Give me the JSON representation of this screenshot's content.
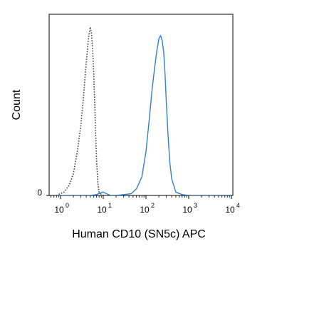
{
  "chart_data": {
    "type": "line",
    "xlabel": "Human CD10 (SN5c) APC",
    "ylabel": "Count",
    "x_scale": "log",
    "xlim": [
      1,
      10000
    ],
    "ylim": [
      0,
      1
    ],
    "x_ticks": [
      {
        "base": "10",
        "exp": "0",
        "value": 1
      },
      {
        "base": "10",
        "exp": "1",
        "value": 10
      },
      {
        "base": "10",
        "exp": "2",
        "value": 100
      },
      {
        "base": "10",
        "exp": "3",
        "value": 1000
      },
      {
        "base": "10",
        "exp": "4",
        "value": 10000
      }
    ],
    "y_ticks": [
      {
        "label": "0",
        "value": 0
      }
    ],
    "grid": false,
    "legend": "none",
    "series": [
      {
        "style": "dotted",
        "color": "#444444",
        "x": [
          0.8,
          1.2,
          1.6,
          2.0,
          2.5,
          3.0,
          3.4,
          3.8,
          4.2,
          4.5,
          4.8,
          5.0,
          5.3,
          5.6,
          6.0,
          6.3,
          6.6,
          7.0,
          7.5,
          8.0,
          9.0,
          10,
          12,
          15
        ],
        "y": [
          0.0,
          0.02,
          0.06,
          0.13,
          0.27,
          0.42,
          0.57,
          0.72,
          0.85,
          0.93,
          0.98,
          1.0,
          0.96,
          0.88,
          0.72,
          0.55,
          0.38,
          0.2,
          0.07,
          0.02,
          0.005,
          0.0,
          0.0,
          0.0
        ]
      },
      {
        "style": "solid",
        "color": "#2f7fd6",
        "x": [
          0.8,
          5.0,
          7.0,
          8.5,
          10,
          12,
          15,
          20,
          30,
          45,
          60,
          80,
          100,
          120,
          140,
          160,
          180,
          200,
          220,
          240,
          260,
          280,
          300,
          330,
          360,
          400,
          500,
          700,
          1000,
          10000
        ],
        "y": [
          0.0,
          0.0,
          0.005,
          0.015,
          0.02,
          0.01,
          0.0,
          0.0,
          0.005,
          0.01,
          0.04,
          0.11,
          0.26,
          0.46,
          0.64,
          0.76,
          0.86,
          0.93,
          0.95,
          0.92,
          0.85,
          0.72,
          0.55,
          0.35,
          0.2,
          0.1,
          0.02,
          0.005,
          0.0,
          0.0
        ]
      }
    ]
  }
}
